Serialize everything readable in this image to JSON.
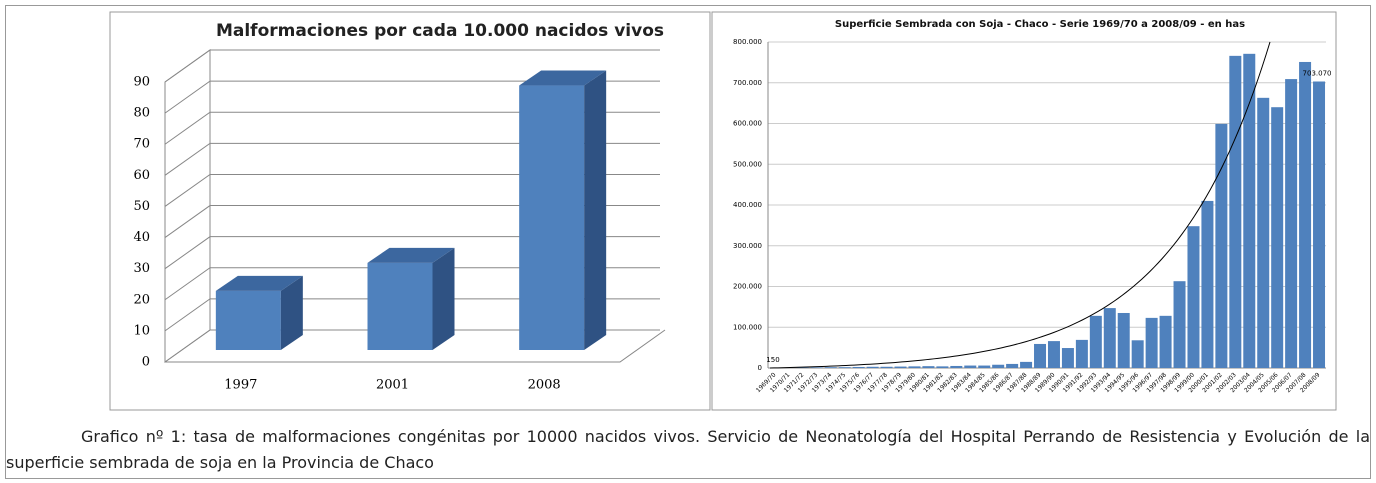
{
  "chart_data": [
    {
      "type": "bar3d",
      "title": "Malformaciones por cada 10.000 nacidos vivos",
      "categories": [
        "1997",
        "2001",
        "2008"
      ],
      "values": [
        19,
        28,
        85
      ],
      "color": "#4f81bd",
      "ylim": [
        0,
        90
      ],
      "yticks": [
        0,
        10,
        20,
        30,
        40,
        50,
        60,
        70,
        80,
        90
      ],
      "grid": true
    },
    {
      "type": "bar",
      "title": "Superficie Sembrada con Soja - Chaco - Serie 1969/70 a 2008/09 - en has",
      "categories": [
        "1969/70",
        "1970/71",
        "1971/72",
        "1972/73",
        "1973/74",
        "1974/75",
        "1975/76",
        "1976/77",
        "1977/78",
        "1978/79",
        "1979/80",
        "1980/81",
        "1981/82",
        "1982/83",
        "1983/84",
        "1984/85",
        "1985/86",
        "1986/87",
        "1987/88",
        "1988/89",
        "1989/90",
        "1990/91",
        "1991/92",
        "1992/93",
        "1993/94",
        "1994/95",
        "1995/96",
        "1996/97",
        "1997/98",
        "1998/99",
        "1999/00",
        "2000/01",
        "2001/02",
        "2002/03",
        "2003/04",
        "2004/05",
        "2005/06",
        "2006/07",
        "2007/08",
        "2008/09"
      ],
      "values": [
        150,
        500,
        1000,
        1500,
        2000,
        2000,
        2500,
        3000,
        3000,
        3500,
        4000,
        4500,
        4000,
        5000,
        6000,
        6000,
        8000,
        10000,
        15000,
        59000,
        66000,
        49000,
        69000,
        128000,
        147000,
        135000,
        68000,
        123000,
        128000,
        213000,
        348000,
        410000,
        599000,
        766000,
        771000,
        663000,
        640000,
        709000,
        751000,
        703070
      ],
      "value_labels": [
        "150",
        null,
        null,
        null,
        null,
        null,
        null,
        null,
        null,
        null,
        null,
        null,
        null,
        null,
        null,
        null,
        null,
        null,
        null,
        null,
        null,
        null,
        null,
        null,
        null,
        null,
        null,
        null,
        null,
        null,
        null,
        null,
        null,
        null,
        null,
        null,
        null,
        null,
        null,
        "703.070"
      ],
      "color": "#4f81bd",
      "ylim": [
        0,
        800000
      ],
      "yticks": [
        0,
        {
          "value": 100000,
          "label": "100.000"
        },
        {
          "value": 200000,
          "label": "200.000"
        },
        {
          "value": 300000,
          "label": "300.000"
        },
        {
          "value": 400000,
          "label": "400.000"
        },
        {
          "value": 500000,
          "label": "500.000"
        },
        {
          "value": 600000,
          "label": "600.000"
        },
        {
          "value": 700000,
          "label": "700.000"
        },
        {
          "value": 800000,
          "label": "800.000"
        }
      ],
      "grid": true,
      "trendline": true
    }
  ],
  "caption": "Grafico nº 1: tasa de malformaciones congénitas por 10000 nacidos vivos. Servicio de Neonatología del Hospital Perrando de Resistencia y Evolución de la superficie sembrada de soja en la Provincia de Chaco"
}
